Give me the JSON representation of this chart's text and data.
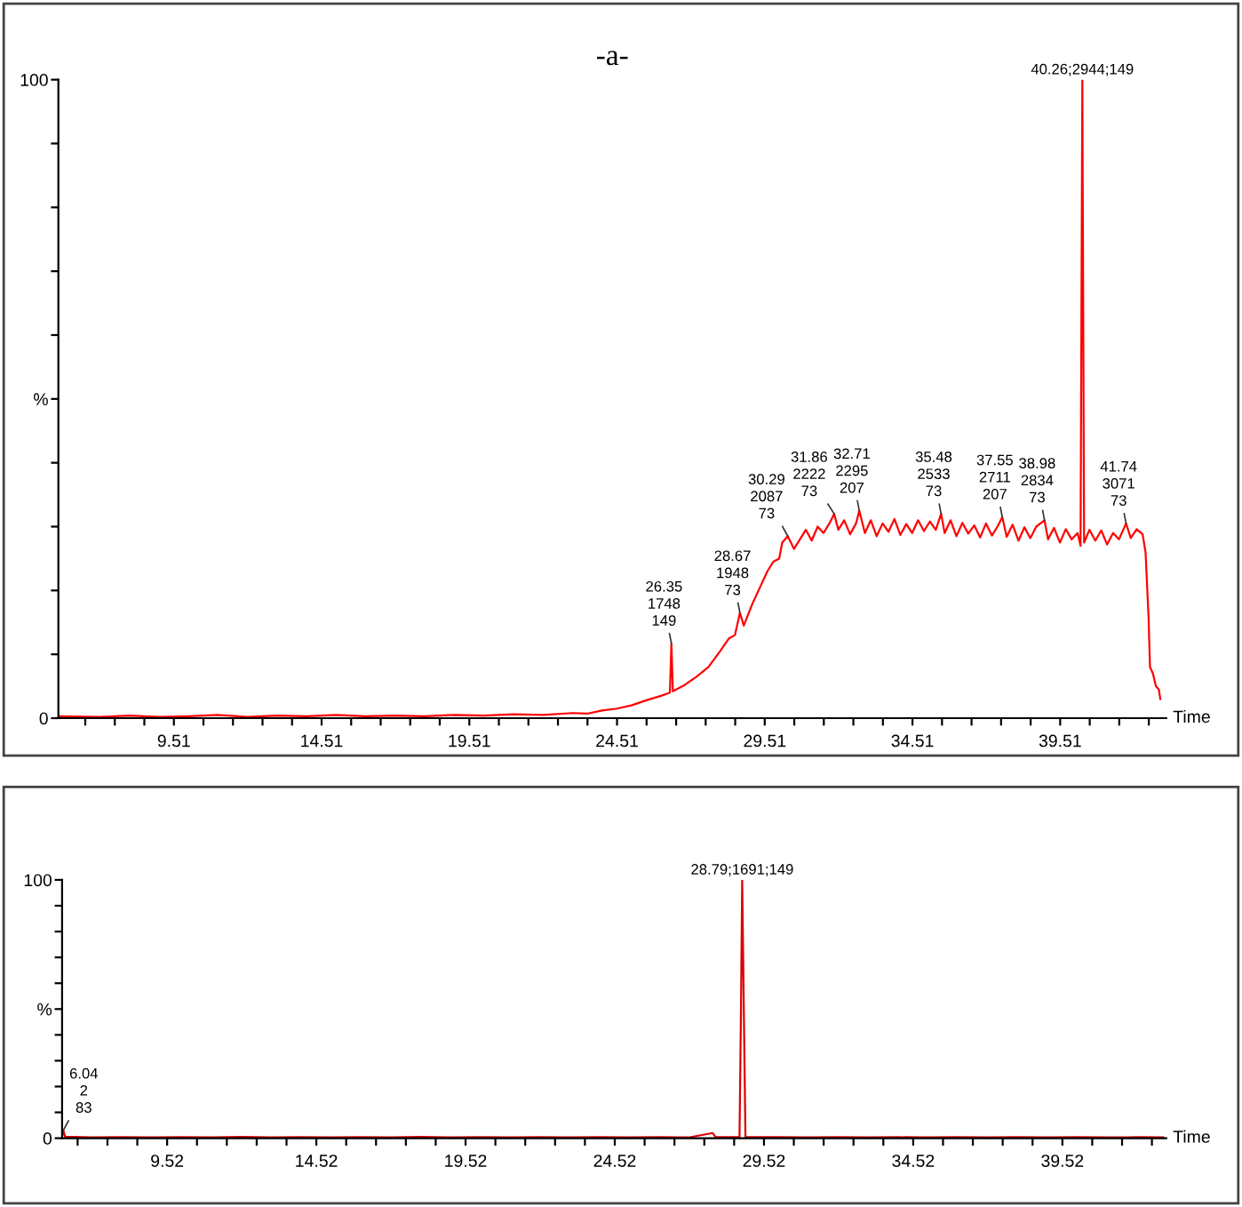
{
  "chart_data": [
    {
      "type": "line",
      "title": "-a-",
      "xlabel": "Time",
      "x": [
        5.6,
        7,
        8,
        9,
        10,
        11,
        12,
        13,
        14,
        15,
        16,
        17,
        18,
        19,
        20,
        21,
        22,
        23,
        23.5,
        24,
        24.5,
        25,
        25.5,
        26,
        26.3,
        26.35,
        26.4,
        26.8,
        27.2,
        27.6,
        28,
        28.3,
        28.5,
        28.67,
        28.8,
        29.1,
        29.4,
        29.6,
        29.8,
        30.0,
        30.1,
        30.29,
        30.5,
        30.7,
        30.9,
        31.1,
        31.3,
        31.5,
        31.7,
        31.86,
        32.0,
        32.2,
        32.4,
        32.6,
        32.71,
        32.9,
        33.1,
        33.3,
        33.5,
        33.7,
        33.9,
        34.1,
        34.3,
        34.5,
        34.7,
        34.9,
        35.1,
        35.3,
        35.48,
        35.6,
        35.8,
        36.0,
        36.2,
        36.4,
        36.6,
        36.8,
        37.0,
        37.2,
        37.4,
        37.55,
        37.7,
        37.9,
        38.1,
        38.3,
        38.5,
        38.7,
        38.98,
        39.1,
        39.3,
        39.5,
        39.7,
        39.9,
        40.1,
        40.2,
        40.26,
        40.32,
        40.5,
        40.7,
        40.9,
        41.1,
        41.3,
        41.5,
        41.74,
        41.9,
        42.1,
        42.3,
        42.4,
        42.5,
        42.55,
        42.65,
        42.75,
        42.85,
        42.9
      ],
      "series": [
        {
          "color": "#ff0000",
          "values": [
            0.3,
            0.2,
            0.4,
            0.2,
            0.3,
            0.5,
            0.2,
            0.4,
            0.3,
            0.5,
            0.3,
            0.4,
            0.3,
            0.5,
            0.4,
            0.6,
            0.5,
            0.8,
            0.7,
            1.2,
            1.5,
            2.0,
            2.8,
            3.5,
            4.0,
            11.7,
            4.2,
            5.2,
            6.5,
            8.0,
            10.5,
            12.5,
            13.0,
            16.5,
            14.5,
            18.0,
            21.0,
            23.0,
            24.5,
            25.0,
            27.5,
            28.5,
            26.5,
            28.0,
            29.5,
            27.8,
            30.0,
            29.0,
            30.5,
            32.0,
            29.5,
            31.0,
            28.8,
            30.5,
            32.5,
            29.0,
            31.0,
            28.5,
            30.5,
            29.2,
            31.2,
            28.7,
            30.4,
            29.0,
            31.0,
            29.3,
            30.8,
            29.5,
            32.0,
            29.0,
            31.0,
            28.5,
            30.6,
            28.9,
            30.2,
            28.3,
            30.5,
            28.6,
            30.1,
            31.5,
            28.4,
            30.3,
            27.8,
            29.9,
            28.2,
            30.0,
            31.0,
            28.0,
            29.8,
            27.5,
            29.6,
            28.0,
            29.0,
            27.0,
            100,
            27.5,
            29.5,
            27.8,
            29.4,
            27.2,
            29.0,
            28.0,
            30.5,
            28.2,
            29.6,
            28.8,
            26.0,
            16.0,
            8.0,
            7.0,
            5.0,
            4.5,
            3.0
          ]
        }
      ],
      "xlim": [
        5.6,
        43.1
      ],
      "ylim": [
        0,
        100
      ],
      "xticks": [
        {
          "value": 6.51,
          "label": null
        },
        {
          "value": 7.51,
          "label": null
        },
        {
          "value": 8.51,
          "label": null
        },
        9.51,
        {
          "value": 10.51,
          "label": null
        },
        {
          "value": 11.51,
          "label": null
        },
        {
          "value": 12.51,
          "label": null
        },
        {
          "value": 13.51,
          "label": null
        },
        14.51,
        {
          "value": 15.51,
          "label": null
        },
        {
          "value": 16.51,
          "label": null
        },
        {
          "value": 17.51,
          "label": null
        },
        {
          "value": 18.51,
          "label": null
        },
        19.51,
        {
          "value": 20.51,
          "label": null
        },
        {
          "value": 21.51,
          "label": null
        },
        {
          "value": 22.51,
          "label": null
        },
        {
          "value": 23.51,
          "label": null
        },
        24.51,
        {
          "value": 25.51,
          "label": null
        },
        {
          "value": 26.51,
          "label": null
        },
        {
          "value": 27.51,
          "label": null
        },
        {
          "value": 28.51,
          "label": null
        },
        29.51,
        {
          "value": 30.51,
          "label": null
        },
        {
          "value": 31.51,
          "label": null
        },
        {
          "value": 32.51,
          "label": null
        },
        {
          "value": 33.51,
          "label": null
        },
        34.51,
        {
          "value": 35.51,
          "label": null
        },
        {
          "value": 36.51,
          "label": null
        },
        {
          "value": 37.51,
          "label": null
        },
        {
          "value": 38.51,
          "label": null
        },
        39.51,
        {
          "value": 40.51,
          "label": null
        },
        {
          "value": 41.51,
          "label": null
        },
        {
          "value": 42.51,
          "label": null
        }
      ],
      "yticks": [
        0,
        {
          "value": 10,
          "label": null
        },
        {
          "value": 20,
          "label": null
        },
        {
          "value": 30,
          "label": null
        },
        {
          "value": 40,
          "label": null
        },
        {
          "value": 50,
          "label": "%"
        },
        {
          "value": 60,
          "label": null
        },
        {
          "value": 70,
          "label": null
        },
        {
          "value": 80,
          "label": null
        },
        {
          "value": 90,
          "label": null
        },
        100
      ],
      "annotations": [
        {
          "text": "26.35\n1748\n149",
          "x": 26.35,
          "y": 11.7
        },
        {
          "text": "28.67\n1948\n73",
          "x": 28.67,
          "y": 16.5
        },
        {
          "text": "30.29\n2087\n73",
          "x": 30.29,
          "y": 28.5
        },
        {
          "text": "31.86\n2222\n73",
          "x": 31.86,
          "y": 32.0
        },
        {
          "text": "32.71\n2295\n207",
          "x": 32.71,
          "y": 32.5
        },
        {
          "text": "35.48\n2533\n73",
          "x": 35.48,
          "y": 32.0
        },
        {
          "text": "37.55\n2711\n207",
          "x": 37.55,
          "y": 31.5
        },
        {
          "text": "38.98\n2834\n73",
          "x": 38.98,
          "y": 31.0
        },
        {
          "text": "40.26;2944;149",
          "x": 40.26,
          "y": 100
        },
        {
          "text": "41.74\n3071\n73",
          "x": 41.74,
          "y": 30.5
        }
      ],
      "grid": false,
      "legend": false,
      "marker": "none",
      "line_style": "solid"
    },
    {
      "type": "line",
      "xlabel": "Time",
      "x": [
        6.0,
        6.04,
        6.1,
        7,
        8,
        9,
        10,
        11,
        12,
        13,
        14,
        15,
        16,
        17,
        18,
        19,
        20,
        21,
        22,
        23,
        24,
        25,
        26,
        27,
        27.8,
        27.9,
        28.7,
        28.75,
        28.79,
        28.85,
        28.9,
        30,
        31,
        32,
        33,
        34,
        35,
        36,
        37,
        38,
        39,
        40,
        41,
        42,
        42.9
      ],
      "series": [
        {
          "color": "#dd0000",
          "values": [
            0.5,
            3.0,
            0.6,
            0.3,
            0.4,
            0.3,
            0.4,
            0.3,
            0.5,
            0.3,
            0.4,
            0.3,
            0.4,
            0.3,
            0.5,
            0.3,
            0.4,
            0.3,
            0.4,
            0.3,
            0.4,
            0.3,
            0.4,
            0.3,
            2.0,
            0.4,
            0.4,
            50,
            100,
            45,
            0.5,
            0.4,
            0.3,
            0.4,
            0.3,
            0.4,
            0.3,
            0.4,
            0.3,
            0.4,
            0.3,
            0.4,
            0.3,
            0.4,
            0.3
          ]
        }
      ],
      "xlim": [
        6.0,
        43.0
      ],
      "ylim": [
        0,
        100
      ],
      "xticks": [
        {
          "value": 6.52,
          "label": null
        },
        {
          "value": 7.52,
          "label": null
        },
        {
          "value": 8.52,
          "label": null
        },
        9.52,
        {
          "value": 10.52,
          "label": null
        },
        {
          "value": 11.52,
          "label": null
        },
        {
          "value": 12.52,
          "label": null
        },
        {
          "value": 13.52,
          "label": null
        },
        14.52,
        {
          "value": 15.52,
          "label": null
        },
        {
          "value": 16.52,
          "label": null
        },
        {
          "value": 17.52,
          "label": null
        },
        {
          "value": 18.52,
          "label": null
        },
        19.52,
        {
          "value": 20.52,
          "label": null
        },
        {
          "value": 21.52,
          "label": null
        },
        {
          "value": 22.52,
          "label": null
        },
        {
          "value": 23.52,
          "label": null
        },
        24.52,
        {
          "value": 25.52,
          "label": null
        },
        {
          "value": 26.52,
          "label": null
        },
        {
          "value": 27.52,
          "label": null
        },
        {
          "value": 28.52,
          "label": null
        },
        29.52,
        {
          "value": 30.52,
          "label": null
        },
        {
          "value": 31.52,
          "label": null
        },
        {
          "value": 32.52,
          "label": null
        },
        {
          "value": 33.52,
          "label": null
        },
        34.52,
        {
          "value": 35.52,
          "label": null
        },
        {
          "value": 36.52,
          "label": null
        },
        {
          "value": 37.52,
          "label": null
        },
        {
          "value": 38.52,
          "label": null
        },
        39.52,
        {
          "value": 40.52,
          "label": null
        },
        {
          "value": 41.52,
          "label": null
        },
        {
          "value": 42.52,
          "label": null
        }
      ],
      "yticks": [
        0,
        {
          "value": 10,
          "label": null
        },
        {
          "value": 20,
          "label": null
        },
        {
          "value": 30,
          "label": null
        },
        {
          "value": 40,
          "label": null
        },
        {
          "value": 50,
          "label": "%"
        },
        {
          "value": 60,
          "label": null
        },
        {
          "value": 70,
          "label": null
        },
        {
          "value": 80,
          "label": null
        },
        {
          "value": 90,
          "label": null
        },
        100
      ],
      "annotations": [
        {
          "text": "6.04\n2\n83",
          "x": 6.04,
          "y": 3.0
        },
        {
          "text": "28.79;1691;149",
          "x": 28.79,
          "y": 100
        }
      ],
      "grid": false,
      "legend": false,
      "marker": "none",
      "line_style": "solid"
    }
  ]
}
